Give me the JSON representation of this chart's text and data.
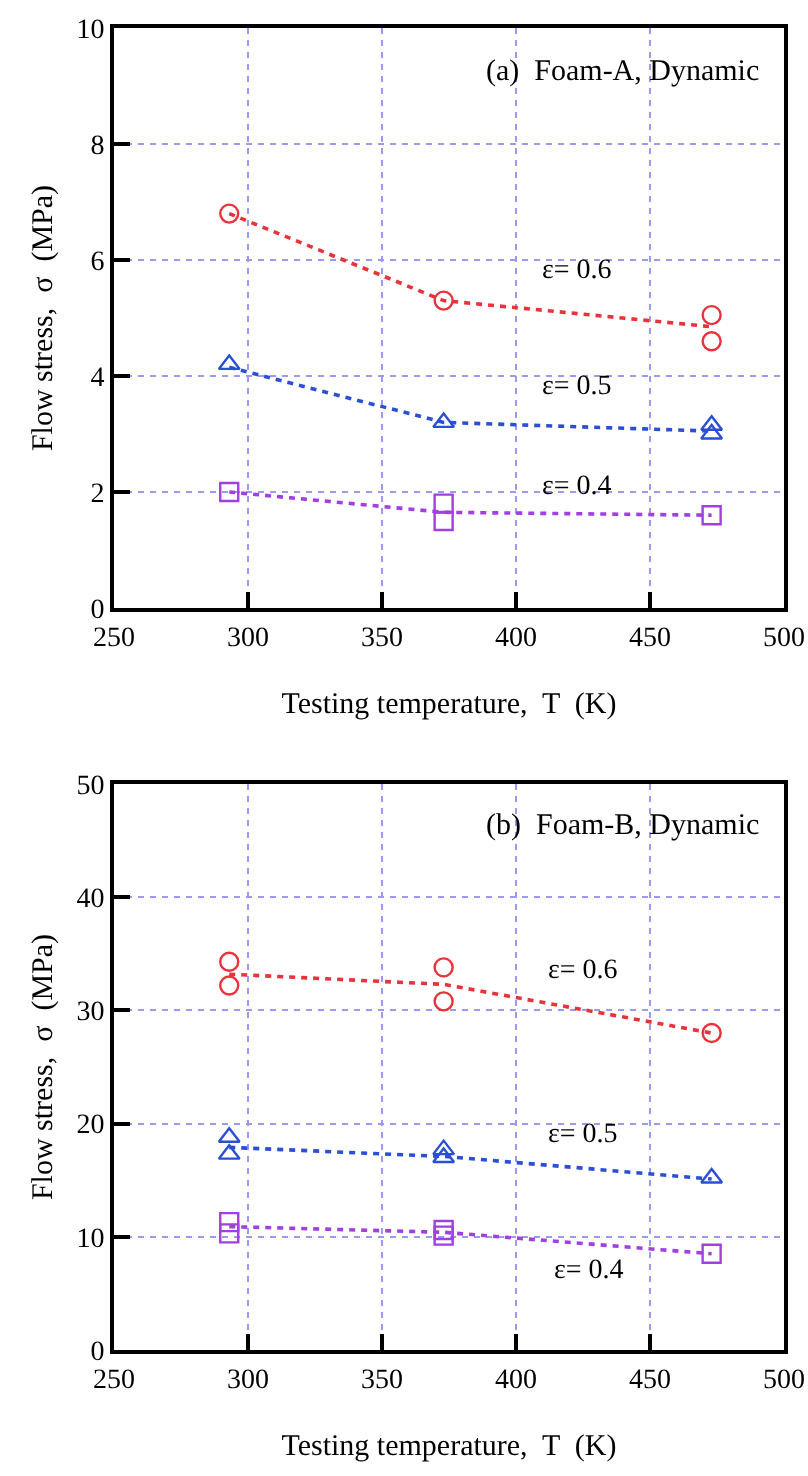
{
  "chart_data": [
    {
      "type": "scatter",
      "xlabel": "Testing temperature,  T  (K)",
      "ylabel": "Flow stress,  σ  (MPa)",
      "xlim": [
        250,
        500
      ],
      "xticks": [
        250,
        300,
        350,
        400,
        450,
        500
      ],
      "ylim": [
        0,
        10
      ],
      "yticks": [
        0,
        2,
        4,
        6,
        8,
        10
      ],
      "grid": true,
      "annotations": [
        "(a)  Foam-A, Dynamic",
        "ε= 0.6",
        "ε= 0.5",
        "ε= 0.4"
      ],
      "series": [
        {
          "marker": "circle",
          "color": "#e8323c",
          "x": [
            293,
            373,
            473,
            473
          ],
          "values": [
            6.8,
            5.3,
            5.05,
            4.6
          ]
        },
        {
          "marker": "triangle",
          "color": "#2a4fd6",
          "x": [
            293,
            373,
            473,
            473
          ],
          "values": [
            4.2,
            3.2,
            3.15,
            3.0
          ]
        },
        {
          "marker": "square",
          "color": "#a040e0",
          "x": [
            293,
            373,
            373,
            473
          ],
          "values": [
            2.0,
            1.8,
            1.5,
            1.6
          ]
        },
        {
          "type": "line",
          "line_style": "dotted",
          "color": "#e8323c",
          "x": [
            293,
            373,
            473
          ],
          "values": [
            6.8,
            5.3,
            4.85
          ]
        },
        {
          "type": "line",
          "line_style": "dotted",
          "color": "#2a4fd6",
          "x": [
            293,
            373,
            473
          ],
          "values": [
            4.15,
            3.2,
            3.05
          ]
        },
        {
          "type": "line",
          "line_style": "dotted",
          "color": "#a040e0",
          "x": [
            293,
            373,
            473
          ],
          "values": [
            2.0,
            1.65,
            1.6
          ]
        }
      ]
    },
    {
      "type": "scatter",
      "xlabel": "Testing temperature,  T  (K)",
      "ylabel": "Flow stress,  σ  (MPa)",
      "xlim": [
        250,
        500
      ],
      "xticks": [
        250,
        300,
        350,
        400,
        450,
        500
      ],
      "ylim": [
        0,
        50
      ],
      "yticks": [
        0,
        10,
        20,
        30,
        40,
        50
      ],
      "grid": true,
      "annotations": [
        "(b)  Foam-B, Dynamic",
        "ε= 0.6",
        "ε= 0.5",
        "ε= 0.4"
      ],
      "series": [
        {
          "marker": "circle",
          "color": "#e8323c",
          "x": [
            293,
            293,
            373,
            373,
            473
          ],
          "values": [
            34.3,
            32.2,
            33.8,
            30.8,
            28.0
          ]
        },
        {
          "marker": "triangle",
          "color": "#2a4fd6",
          "x": [
            293,
            293,
            373,
            373,
            473
          ],
          "values": [
            18.8,
            17.3,
            17.7,
            17.0,
            15.2
          ]
        },
        {
          "marker": "square",
          "color": "#a040e0",
          "x": [
            293,
            293,
            373,
            373,
            473
          ],
          "values": [
            11.3,
            10.3,
            10.6,
            10.1,
            8.5
          ]
        },
        {
          "type": "line",
          "line_style": "dotted",
          "color": "#e8323c",
          "x": [
            293,
            373,
            473
          ],
          "values": [
            33.2,
            32.3,
            28.0
          ]
        },
        {
          "type": "line",
          "line_style": "dotted",
          "color": "#2a4fd6",
          "x": [
            293,
            373,
            473
          ],
          "values": [
            17.9,
            17.1,
            15.1
          ]
        },
        {
          "type": "line",
          "line_style": "dotted",
          "color": "#a040e0",
          "x": [
            293,
            373,
            473
          ],
          "values": [
            10.9,
            10.4,
            8.5
          ]
        }
      ]
    }
  ]
}
